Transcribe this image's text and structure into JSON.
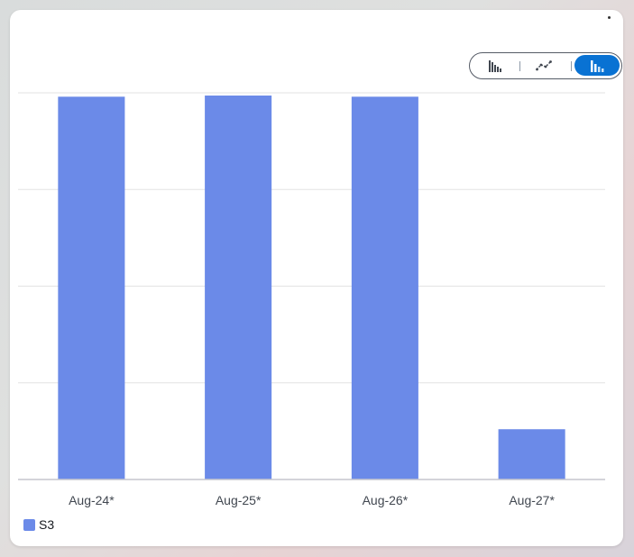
{
  "chart_toggle": {
    "options": [
      "grouped-bar-chart",
      "line-chart",
      "stacked-bar-chart"
    ],
    "selected": "stacked-bar-chart"
  },
  "chart_data": {
    "type": "bar",
    "categories": [
      "Aug-24*",
      "Aug-25*",
      "Aug-26*",
      "Aug-27*"
    ],
    "series": [
      {
        "name": "S3",
        "values": [
          99,
          99.3,
          99,
          13
        ],
        "color": "#6b8ae8"
      }
    ],
    "ylim": [
      0,
      100
    ],
    "grid": true,
    "legend": "bottom-left",
    "colors": {
      "gridline": "#e3e3e3",
      "axis": "#c6c6cd",
      "tick_text": "#414750",
      "toggle_active": "#0972d3"
    }
  }
}
